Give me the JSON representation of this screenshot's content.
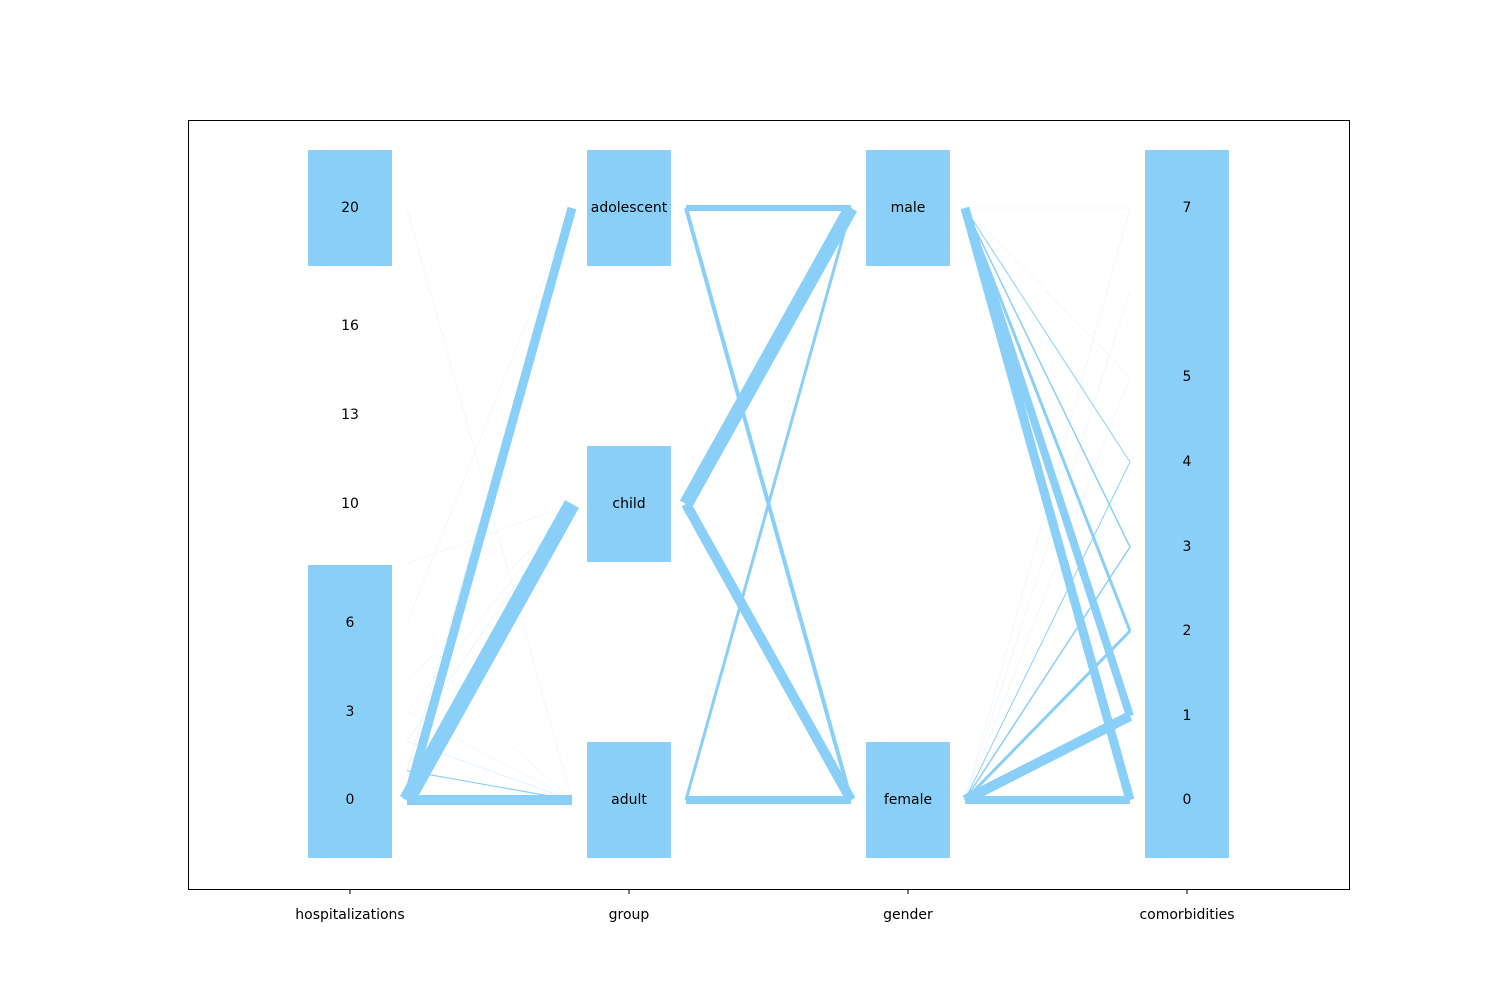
{
  "chart_data": {
    "type": "parallel-categories",
    "title": "",
    "colors": {
      "bar": "#89CFF8",
      "ribbon": "#89CFF8",
      "frame": "#000000",
      "background": "#ffffff"
    },
    "dimensions": [
      {
        "name": "hospitalizations",
        "ticks": [
          {
            "label": "20",
            "value": 20
          },
          {
            "label": "16",
            "value": 16
          },
          {
            "label": "13",
            "value": 13
          },
          {
            "label": "10",
            "value": 10
          },
          {
            "label": "6",
            "value": 6
          },
          {
            "label": "3",
            "value": 3
          },
          {
            "label": "0",
            "value": 0
          }
        ],
        "bars": [
          {
            "from": 0,
            "to": 6
          },
          {
            "from": 20,
            "to": 20
          }
        ]
      },
      {
        "name": "group",
        "ticks": [
          {
            "label": "adolescent",
            "value": 2
          },
          {
            "label": "child",
            "value": 1
          },
          {
            "label": "adult",
            "value": 0
          }
        ],
        "bars": [
          {
            "from": 2,
            "to": 2
          },
          {
            "from": 1,
            "to": 1
          },
          {
            "from": 0,
            "to": 0
          }
        ]
      },
      {
        "name": "gender",
        "ticks": [
          {
            "label": "male",
            "value": 1
          },
          {
            "label": "female",
            "value": 0
          }
        ],
        "bars": [
          {
            "from": 1,
            "to": 1
          },
          {
            "from": 0,
            "to": 0
          }
        ]
      },
      {
        "name": "comorbidities",
        "ticks": [
          {
            "label": "7",
            "value": 7
          },
          {
            "label": "5",
            "value": 5
          },
          {
            "label": "4",
            "value": 4
          },
          {
            "label": "3",
            "value": 3
          },
          {
            "label": "2",
            "value": 2
          },
          {
            "label": "1",
            "value": 1
          },
          {
            "label": "0",
            "value": 0
          }
        ],
        "bars": [
          {
            "from": 0,
            "to": 7
          }
        ]
      }
    ],
    "flows": [
      [
        {
          "from": 0,
          "to": 0,
          "weight": 10
        },
        {
          "from": 0,
          "to": 2,
          "weight": 9
        },
        {
          "from": 0,
          "to": 1,
          "weight": 16
        },
        {
          "from": 1,
          "to": 0,
          "weight": 1.2
        },
        {
          "from": 2,
          "to": 0,
          "weight": 0.7
        },
        {
          "from": 1,
          "to": 2,
          "weight": 0.5
        },
        {
          "from": 2,
          "to": 1,
          "weight": 0.5
        },
        {
          "from": 3,
          "to": 0,
          "weight": 0.3
        },
        {
          "from": 3,
          "to": 1,
          "weight": 0.3
        },
        {
          "from": 4,
          "to": 1,
          "weight": 0.3
        },
        {
          "from": 5,
          "to": 0,
          "weight": 0.2
        },
        {
          "from": 6,
          "to": 2,
          "weight": 0.2
        },
        {
          "from": 8,
          "to": 1,
          "weight": 0.2
        },
        {
          "from": 20,
          "to": 0,
          "weight": 0.2
        }
      ],
      [
        {
          "from": 2,
          "to": 1,
          "weight": 6
        },
        {
          "from": 2,
          "to": 0,
          "weight": 4
        },
        {
          "from": 1,
          "to": 1,
          "weight": 14
        },
        {
          "from": 1,
          "to": 0,
          "weight": 10
        },
        {
          "from": 0,
          "to": 1,
          "weight": 3
        },
        {
          "from": 0,
          "to": 0,
          "weight": 8
        }
      ],
      [
        {
          "from": 1,
          "to": 0,
          "weight": 9
        },
        {
          "from": 1,
          "to": 1,
          "weight": 8
        },
        {
          "from": 1,
          "to": 2,
          "weight": 3
        },
        {
          "from": 1,
          "to": 3,
          "weight": 1.5
        },
        {
          "from": 1,
          "to": 4,
          "weight": 1
        },
        {
          "from": 1,
          "to": 5,
          "weight": 0.5
        },
        {
          "from": 1,
          "to": 7,
          "weight": 0.3
        },
        {
          "from": 0,
          "to": 0,
          "weight": 8
        },
        {
          "from": 0,
          "to": 1,
          "weight": 10
        },
        {
          "from": 0,
          "to": 2,
          "weight": 3
        },
        {
          "from": 0,
          "to": 3,
          "weight": 1.5
        },
        {
          "from": 0,
          "to": 4,
          "weight": 1
        },
        {
          "from": 0,
          "to": 5,
          "weight": 0.4
        },
        {
          "from": 0,
          "to": 6,
          "weight": 0.3
        },
        {
          "from": 0,
          "to": 7,
          "weight": 0.2
        }
      ]
    ]
  }
}
